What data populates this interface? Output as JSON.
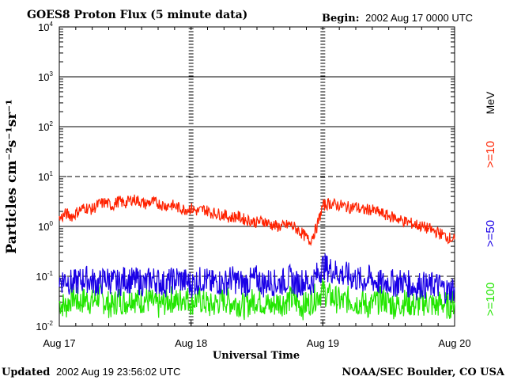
{
  "chart_data": {
    "type": "line",
    "title": "GOES8 Proton Flux (5 minute data)",
    "begin_label": "Begin:",
    "begin_value": "2002 Aug 17 0000 UTC",
    "xlabel": "Universal Time",
    "ylabel": "Particles cm⁻²s⁻¹sr⁻¹",
    "ylim": [
      0.01,
      10000
    ],
    "yscale": "log",
    "y_ticks": [
      {
        "base": "10",
        "exp": "-2"
      },
      {
        "base": "10",
        "exp": "-1"
      },
      {
        "base": "10",
        "exp": "0"
      },
      {
        "base": "10",
        "exp": "1"
      },
      {
        "base": "10",
        "exp": "2"
      },
      {
        "base": "10",
        "exp": "3"
      },
      {
        "base": "10",
        "exp": "4"
      }
    ],
    "x_range_days": [
      0,
      3
    ],
    "x_ticks": [
      "Aug 17",
      "Aug 18",
      "Aug 19",
      "Aug 20"
    ],
    "reference_lines": [
      {
        "value": 10,
        "style": "dashed"
      },
      {
        "value": 0.1,
        "style": "dashed"
      }
    ],
    "legend_unit": "MeV",
    "series": [
      {
        "name": ">=10",
        "color": "#ff2200",
        "x": [
          0.0,
          0.05,
          0.1,
          0.15,
          0.2,
          0.25,
          0.3,
          0.35,
          0.4,
          0.45,
          0.5,
          0.55,
          0.6,
          0.65,
          0.7,
          0.75,
          0.8,
          0.85,
          0.9,
          0.95,
          1.0,
          1.05,
          1.1,
          1.15,
          1.2,
          1.25,
          1.3,
          1.35,
          1.4,
          1.45,
          1.5,
          1.55,
          1.6,
          1.65,
          1.7,
          1.75,
          1.8,
          1.85,
          1.9,
          1.95,
          2.0,
          2.05,
          2.1,
          2.15,
          2.2,
          2.25,
          2.3,
          2.35,
          2.4,
          2.45,
          2.5,
          2.55,
          2.6,
          2.65,
          2.7,
          2.75,
          2.8,
          2.85,
          2.9,
          2.95,
          3.0
        ],
        "values": [
          1.4,
          1.8,
          1.6,
          2.1,
          2.4,
          2.2,
          2.8,
          3.0,
          2.6,
          3.2,
          2.9,
          3.5,
          3.3,
          2.8,
          3.1,
          2.9,
          2.6,
          2.7,
          2.4,
          2.2,
          2.3,
          2.0,
          2.2,
          1.9,
          1.8,
          1.7,
          1.5,
          1.6,
          1.4,
          1.3,
          1.2,
          1.3,
          1.1,
          1.0,
          1.0,
          1.1,
          0.9,
          0.7,
          0.5,
          0.9,
          2.6,
          2.9,
          2.7,
          2.6,
          2.4,
          2.5,
          2.1,
          2.2,
          2.0,
          1.8,
          1.6,
          1.5,
          1.3,
          1.2,
          1.1,
          1.0,
          0.9,
          0.8,
          0.7,
          0.6,
          0.55
        ]
      },
      {
        "name": ">=50",
        "color": "#1a00e6",
        "x": [
          0.0,
          0.05,
          0.1,
          0.15,
          0.2,
          0.25,
          0.3,
          0.35,
          0.4,
          0.45,
          0.5,
          0.55,
          0.6,
          0.65,
          0.7,
          0.75,
          0.8,
          0.85,
          0.9,
          0.95,
          1.0,
          1.05,
          1.1,
          1.15,
          1.2,
          1.25,
          1.3,
          1.35,
          1.4,
          1.45,
          1.5,
          1.55,
          1.6,
          1.65,
          1.7,
          1.75,
          1.8,
          1.85,
          1.9,
          1.95,
          2.0,
          2.05,
          2.1,
          2.15,
          2.2,
          2.25,
          2.3,
          2.35,
          2.4,
          2.45,
          2.5,
          2.55,
          2.6,
          2.65,
          2.7,
          2.75,
          2.8,
          2.85,
          2.9,
          2.95,
          3.0
        ],
        "values": [
          0.08,
          0.09,
          0.07,
          0.08,
          0.09,
          0.08,
          0.07,
          0.09,
          0.08,
          0.07,
          0.09,
          0.08,
          0.08,
          0.07,
          0.09,
          0.08,
          0.07,
          0.08,
          0.09,
          0.08,
          0.07,
          0.08,
          0.09,
          0.07,
          0.08,
          0.07,
          0.09,
          0.08,
          0.07,
          0.08,
          0.09,
          0.07,
          0.08,
          0.07,
          0.08,
          0.09,
          0.07,
          0.08,
          0.07,
          0.1,
          0.16,
          0.14,
          0.12,
          0.11,
          0.1,
          0.09,
          0.08,
          0.09,
          0.08,
          0.07,
          0.08,
          0.07,
          0.08,
          0.07,
          0.06,
          0.07,
          0.06,
          0.07,
          0.06,
          0.05,
          0.06
        ]
      },
      {
        "name": ">=100",
        "color": "#22e600",
        "x": [
          0.0,
          0.05,
          0.1,
          0.15,
          0.2,
          0.25,
          0.3,
          0.35,
          0.4,
          0.45,
          0.5,
          0.55,
          0.6,
          0.65,
          0.7,
          0.75,
          0.8,
          0.85,
          0.9,
          0.95,
          1.0,
          1.05,
          1.1,
          1.15,
          1.2,
          1.25,
          1.3,
          1.35,
          1.4,
          1.45,
          1.5,
          1.55,
          1.6,
          1.65,
          1.7,
          1.75,
          1.8,
          1.85,
          1.9,
          1.95,
          2.0,
          2.05,
          2.1,
          2.15,
          2.2,
          2.25,
          2.3,
          2.35,
          2.4,
          2.45,
          2.5,
          2.55,
          2.6,
          2.65,
          2.7,
          2.75,
          2.8,
          2.85,
          2.9,
          2.95,
          3.0
        ],
        "values": [
          0.03,
          0.025,
          0.04,
          0.03,
          0.035,
          0.03,
          0.04,
          0.03,
          0.025,
          0.035,
          0.03,
          0.04,
          0.03,
          0.035,
          0.03,
          0.025,
          0.03,
          0.035,
          0.03,
          0.04,
          0.03,
          0.035,
          0.03,
          0.025,
          0.03,
          0.035,
          0.03,
          0.03,
          0.025,
          0.03,
          0.035,
          0.03,
          0.025,
          0.03,
          0.03,
          0.035,
          0.03,
          0.025,
          0.03,
          0.04,
          0.05,
          0.04,
          0.035,
          0.03,
          0.035,
          0.03,
          0.03,
          0.025,
          0.03,
          0.035,
          0.03,
          0.025,
          0.03,
          0.03,
          0.025,
          0.03,
          0.03,
          0.025,
          0.03,
          0.025,
          0.03
        ]
      }
    ]
  },
  "footer": {
    "updated_label": "Updated",
    "updated_value": "2002 Aug 19 23:56:02 UTC",
    "credit": "NOAA/SEC Boulder, CO USA"
  }
}
